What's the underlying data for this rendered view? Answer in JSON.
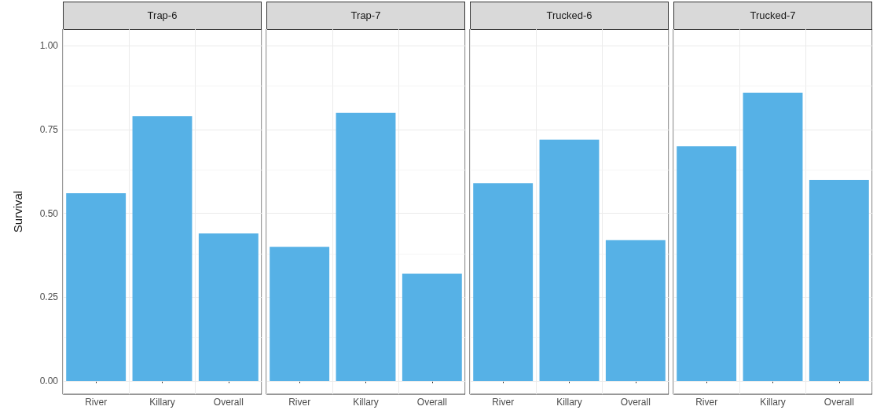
{
  "chart_data": [
    {
      "type": "bar",
      "title": "Trap-6",
      "ylabel": "Survival",
      "categories": [
        "River",
        "Killary",
        "Overall"
      ],
      "values": [
        0.56,
        0.79,
        0.44
      ],
      "color": "#56b1e6",
      "ylim": [
        -0.04,
        1.05
      ],
      "yticks": [
        {
          "value": 0,
          "label": "0.00"
        },
        {
          "value": 0.25,
          "label": "0.25"
        },
        {
          "value": 0.5,
          "label": "0.50"
        },
        {
          "value": 0.75,
          "label": "0.75"
        },
        {
          "value": 1,
          "label": "1.00"
        }
      ],
      "grid": true
    },
    {
      "type": "bar",
      "title": "Trap-7",
      "categories": [
        "River",
        "Killary",
        "Overall"
      ],
      "values": [
        0.4,
        0.8,
        0.32
      ],
      "color": "#56b1e6",
      "ylim": [
        -0.04,
        1.05
      ],
      "yticks": [
        0,
        0.25,
        0.5,
        0.75,
        1
      ],
      "grid": true,
      "tick_labels": "x"
    },
    {
      "type": "bar",
      "title": "Trucked-6",
      "categories": [
        "River",
        "Killary",
        "Overall"
      ],
      "values": [
        0.59,
        0.72,
        0.42
      ],
      "color": "#56b1e6",
      "ylim": [
        -0.04,
        1.05
      ],
      "yticks": [
        0,
        0.25,
        0.5,
        0.75,
        1
      ],
      "grid": true,
      "tick_labels": "x"
    },
    {
      "type": "bar",
      "title": "Trucked-7",
      "categories": [
        "River",
        "Killary",
        "Overall"
      ],
      "values": [
        0.7,
        0.86,
        0.6
      ],
      "color": "#56b1e6",
      "ylim": [
        -0.04,
        1.05
      ],
      "yticks": [
        0,
        0.25,
        0.5,
        0.75,
        1
      ],
      "grid": true,
      "tick_labels": "x"
    }
  ]
}
